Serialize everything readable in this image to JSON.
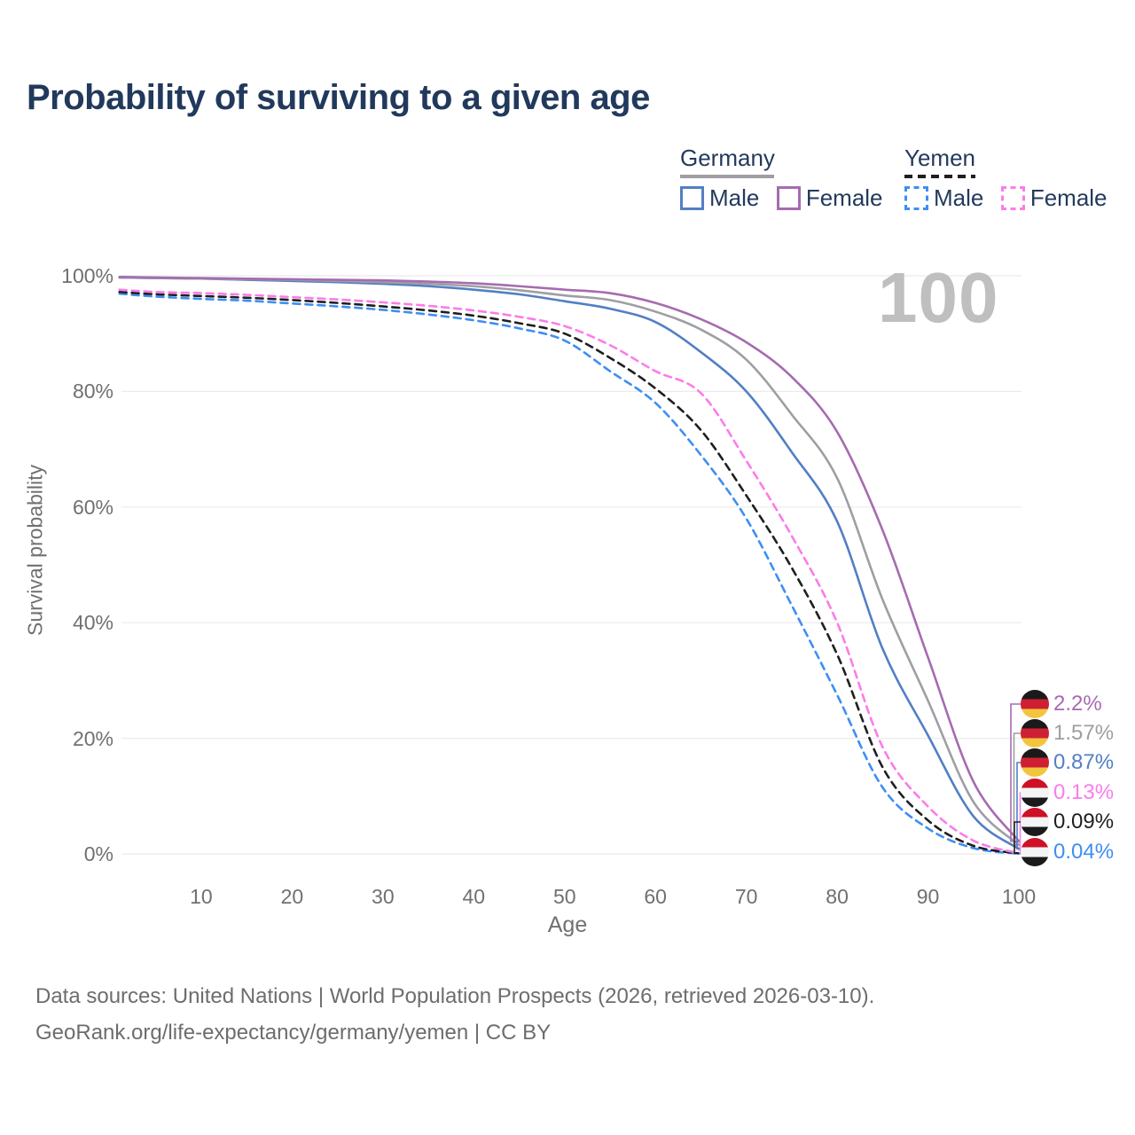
{
  "title": "Probability of surviving to a given age",
  "watermark": "100",
  "colors": {
    "germany_male": "#527fc4",
    "germany_female": "#a66bb0",
    "germany_all": "#9e9ea3",
    "yemen_male": "#3e8ef5",
    "yemen_female": "#fb7ce8",
    "yemen_all": "#1f1f1f",
    "title_text": "#21395c",
    "axis_text": "#707070",
    "watermark": "#bfbfbf",
    "grid": "#ebebeb"
  },
  "legend": {
    "groups": [
      {
        "label": "Germany",
        "style": "solid",
        "items": [
          {
            "label": "Male"
          },
          {
            "label": "Female"
          }
        ]
      },
      {
        "label": "Yemen",
        "style": "dashed",
        "items": [
          {
            "label": "Male"
          },
          {
            "label": "Female"
          }
        ]
      }
    ]
  },
  "y_axis": {
    "label": "Survival probability",
    "ticks": [
      "0%",
      "20%",
      "40%",
      "60%",
      "80%",
      "100%"
    ]
  },
  "x_axis": {
    "label": "Age",
    "ticks": [
      "10",
      "20",
      "30",
      "40",
      "50",
      "60",
      "70",
      "80",
      "90",
      "100"
    ]
  },
  "footer": {
    "line1": "Data sources: United Nations | World Population Prospects (2026, retrieved 2026-03-10).",
    "line2": "GeoRank.org/life-expectancy/germany/yemen | CC BY"
  },
  "chart_data": {
    "type": "line",
    "title": "Probability of surviving to a given age",
    "xlabel": "Age",
    "ylabel": "Survival probability",
    "xlim": [
      1,
      100
    ],
    "ylim": [
      0,
      100
    ],
    "grid": "horizontal",
    "hover_age": "100",
    "x": [
      1,
      5,
      10,
      15,
      20,
      25,
      30,
      35,
      40,
      45,
      50,
      55,
      60,
      65,
      70,
      75,
      80,
      85,
      90,
      95,
      100
    ],
    "series": [
      {
        "id": "germany-female",
        "name": "Germany Female",
        "country": "Germany",
        "sex": "Female",
        "color": "#a66bb0",
        "dashed": false,
        "flag": "de",
        "end_label": "2.2%",
        "values": [
          99.8,
          99.7,
          99.6,
          99.5,
          99.4,
          99.3,
          99.2,
          99.0,
          98.7,
          98.2,
          97.6,
          97.0,
          95.3,
          92.5,
          88.5,
          82.5,
          73.0,
          56.0,
          34.0,
          12.5,
          2.2
        ]
      },
      {
        "id": "germany-all",
        "name": "Germany Both sexes",
        "country": "Germany",
        "sex": "Both",
        "color": "#9e9ea3",
        "dashed": false,
        "flag": "de",
        "end_label": "1.57%",
        "values": [
          99.7,
          99.6,
          99.5,
          99.4,
          99.3,
          99.1,
          98.9,
          98.6,
          98.2,
          97.5,
          96.6,
          95.8,
          93.8,
          90.7,
          85.5,
          76.0,
          65.0,
          44.0,
          26.5,
          9.0,
          1.57
        ]
      },
      {
        "id": "germany-male",
        "name": "Germany Male",
        "country": "Germany",
        "sex": "Male",
        "color": "#527fc4",
        "dashed": false,
        "flag": "de",
        "end_label": "0.87%",
        "values": [
          99.7,
          99.6,
          99.5,
          99.3,
          99.1,
          98.9,
          98.6,
          98.2,
          97.6,
          96.8,
          95.6,
          94.3,
          92.0,
          86.8,
          80.0,
          69.5,
          57.5,
          35.5,
          20.5,
          6.5,
          0.87
        ]
      },
      {
        "id": "yemen-female",
        "name": "Yemen Female",
        "country": "Yemen",
        "sex": "Female",
        "color": "#fb7ce8",
        "dashed": true,
        "flag": "ye",
        "end_label": "0.13%",
        "values": [
          97.6,
          97.2,
          97.0,
          96.7,
          96.3,
          95.9,
          95.4,
          94.8,
          94.0,
          92.9,
          91.3,
          88.0,
          83.5,
          79.7,
          68.0,
          55.0,
          40.0,
          18.5,
          8.2,
          2.3,
          0.13
        ]
      },
      {
        "id": "yemen-all",
        "name": "Yemen Both sexes",
        "country": "Yemen",
        "sex": "Both",
        "color": "#1f1f1f",
        "dashed": true,
        "flag": "ye",
        "end_label": "0.09%",
        "values": [
          97.2,
          96.8,
          96.5,
          96.2,
          95.8,
          95.3,
          94.7,
          94.0,
          93.1,
          91.8,
          90.0,
          85.8,
          80.5,
          73.3,
          62.0,
          49.5,
          34.5,
          15.0,
          5.8,
          1.4,
          0.09
        ]
      },
      {
        "id": "yemen-male",
        "name": "Yemen Male",
        "country": "Yemen",
        "sex": "Male",
        "color": "#3e8ef5",
        "dashed": true,
        "flag": "ye",
        "end_label": "0.04%",
        "values": [
          96.9,
          96.4,
          96.0,
          95.7,
          95.2,
          94.7,
          94.1,
          93.3,
          92.3,
          90.9,
          88.8,
          83.5,
          78.0,
          69.0,
          58.0,
          43.0,
          27.5,
          11.5,
          4.4,
          1.0,
          0.04
        ]
      }
    ]
  }
}
